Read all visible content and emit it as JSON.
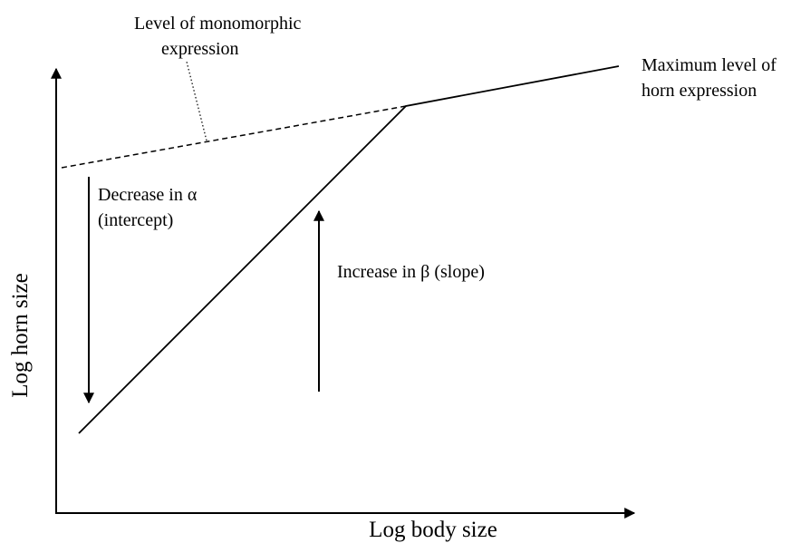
{
  "labels": {
    "monomorphic": [
      "Level of monomorphic",
      "expression"
    ],
    "maximum": [
      "Maximum level of",
      "horn expression"
    ],
    "decrease": [
      "Decrease in α",
      "(intercept)"
    ],
    "increase": "Increase in β (slope)",
    "y_axis": "Log horn size",
    "x_axis": "Log body size"
  }
}
